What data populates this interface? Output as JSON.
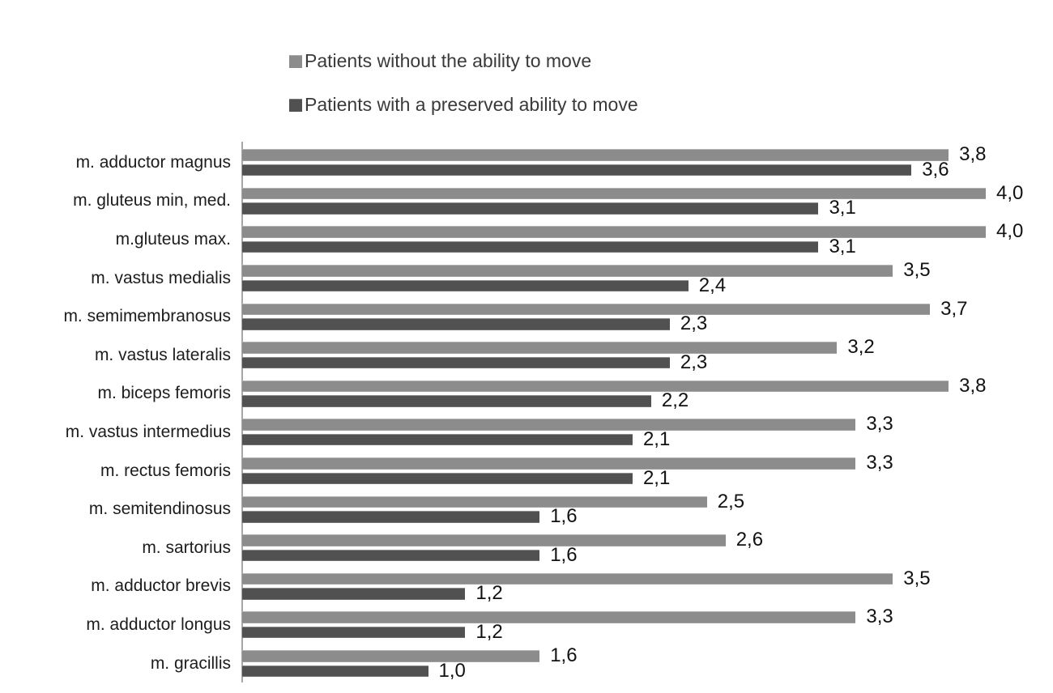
{
  "page": {
    "background": "#ffffff"
  },
  "chart_data": {
    "type": "bar",
    "orientation": "horizontal",
    "title": "",
    "xlabel": "",
    "ylabel": "",
    "xlim": [
      0,
      4.0
    ],
    "grid": false,
    "legend_position": "top",
    "decimal_separator": ",",
    "categories": [
      "m. adductor magnus",
      "m. gluteus min, med.",
      "m.gluteus max.",
      "m. vastus medialis",
      "m. semimembranosus",
      "m. vastus lateralis",
      "m. biceps femoris",
      "m. vastus intermedius",
      "m. rectus femoris",
      "m. semitendinosus",
      "m. sartorius",
      "m. adductor brevis",
      "m. adductor longus",
      "m. gracillis"
    ],
    "series": [
      {
        "name": "Patients without the ability to move",
        "color": "#8c8c8c",
        "values": [
          3.8,
          4.0,
          4.0,
          3.5,
          3.7,
          3.2,
          3.8,
          3.3,
          3.3,
          2.5,
          2.6,
          3.5,
          3.3,
          1.6
        ],
        "labels": [
          "3,8",
          "4,0",
          "4,0",
          "3,5",
          "3,7",
          "3,2",
          "3,8",
          "3,3",
          "3,3",
          "2,5",
          "2,6",
          "3,5",
          "3,3",
          "1,6"
        ]
      },
      {
        "name": "Patients with a preserved ability to move",
        "color": "#515151",
        "values": [
          3.6,
          3.1,
          3.1,
          2.4,
          2.3,
          2.3,
          2.2,
          2.1,
          2.1,
          1.6,
          1.6,
          1.2,
          1.2,
          1.0
        ],
        "labels": [
          "3,6",
          "3,1",
          "3,1",
          "2,4",
          "2,3",
          "2,3",
          "2,2",
          "2,1",
          "2,1",
          "1,6",
          "1,6",
          "1,2",
          "1,2",
          "1,0"
        ]
      }
    ]
  },
  "colors": {
    "axis": "#a6a6a6",
    "category_text": "#1d1d1d",
    "value_text": "#121212",
    "legend_text": "#3a3a3a"
  }
}
